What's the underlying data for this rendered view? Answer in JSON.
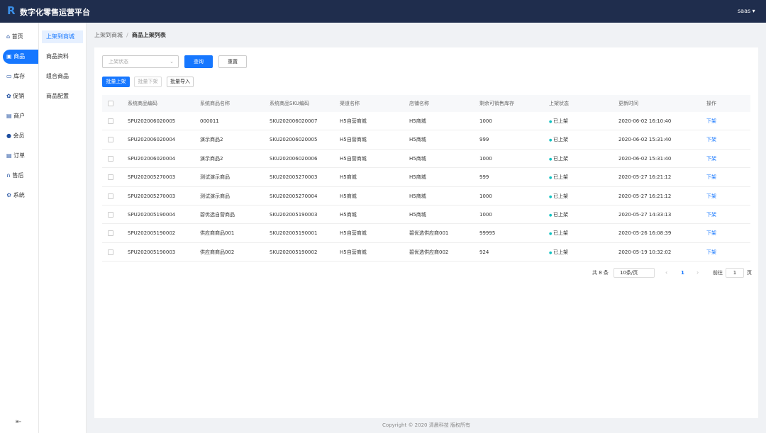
{
  "header": {
    "title": "数字化零售运营平台",
    "user": "saas"
  },
  "nav": [
    "首页",
    "商品",
    "库存",
    "促销",
    "商户",
    "会员",
    "订单",
    "售后",
    "系统"
  ],
  "submenu": [
    "上架到商城",
    "商品资料",
    "组合商品",
    "商品配置"
  ],
  "breadcrumb": [
    "上架到商城",
    "商品上架列表"
  ],
  "filter": {
    "status_placeholder": "上架状态",
    "query": "查询",
    "reset": "重置"
  },
  "actions": [
    "批量上架",
    "批量下架",
    "批量导入"
  ],
  "table": {
    "columns": [
      "系统商品编码",
      "系统商品名称",
      "系统商品SKU编码",
      "渠道名称",
      "店铺名称",
      "剩余可销售库存",
      "上架状态",
      "更新时间",
      "操作"
    ],
    "rows": [
      [
        "SPU202006020005",
        "000011",
        "SKU202006020007",
        "H5自营商城",
        "H5商城",
        "1000",
        "已上架",
        "2020-06-02 16:10:40",
        "下架"
      ],
      [
        "SPU202006020004",
        "演示商品2",
        "SKU202006020005",
        "H5自营商城",
        "H5商城",
        "999",
        "已上架",
        "2020-06-02 15:31:40",
        "下架"
      ],
      [
        "SPU202006020004",
        "演示商品2",
        "SKU202006020006",
        "H5自营商城",
        "H5商城",
        "1000",
        "已上架",
        "2020-06-02 15:31:40",
        "下架"
      ],
      [
        "SPU202005270003",
        "测试演示商品",
        "SKU202005270003",
        "H5商城",
        "H5商城",
        "999",
        "已上架",
        "2020-05-27 16:21:12",
        "下架"
      ],
      [
        "SPU202005270003",
        "测试演示商品",
        "SKU202005270004",
        "H5商城",
        "H5商城",
        "1000",
        "已上架",
        "2020-05-27 16:21:12",
        "下架"
      ],
      [
        "SPU202005190004",
        "碧优选自营商品",
        "SKU202005190003",
        "H5商城",
        "H5商城",
        "1000",
        "已上架",
        "2020-05-27 14:33:13",
        "下架"
      ],
      [
        "SPU202005190002",
        "供应商商品001",
        "SKU202005190001",
        "H5自营商城",
        "碧优选供应商001",
        "99995",
        "已上架",
        "2020-05-26 16:08:39",
        "下架"
      ],
      [
        "SPU202005190003",
        "供应商商品002",
        "SKU202005190002",
        "H5自营商城",
        "碧优选供应商002",
        "924",
        "已上架",
        "2020-05-19 10:32:02",
        "下架"
      ]
    ]
  },
  "pagination": {
    "total": "共 8 条",
    "page_size": "10条/页",
    "current": "1",
    "goto": "前往",
    "goto_value": "1",
    "page_unit": "页"
  },
  "footer": "Copyright © 2020 清晨科技 版权所有"
}
